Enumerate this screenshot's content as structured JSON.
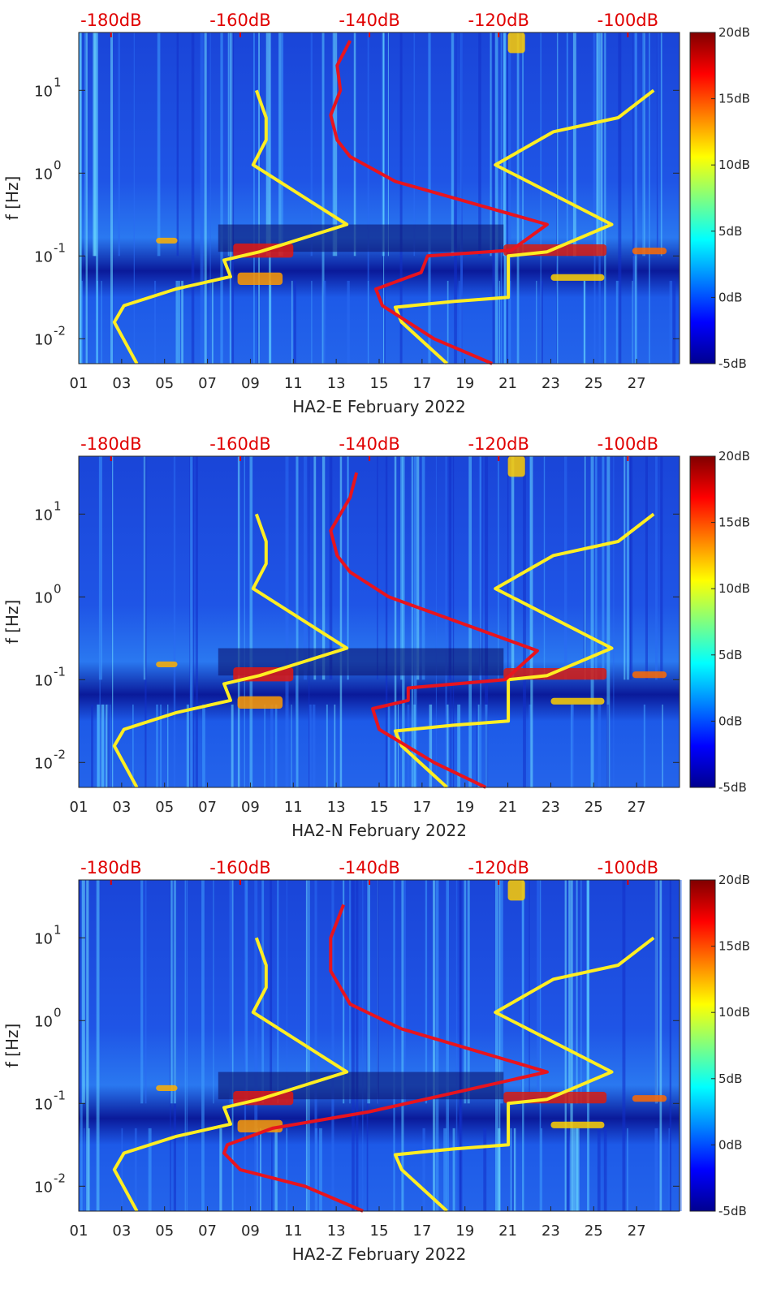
{
  "chart_data": [
    {
      "type": "heatmap",
      "title": "",
      "xlabel": "HA2-E February 2022",
      "ylabel": "f [Hz]",
      "x_ticks": [
        "01",
        "03",
        "05",
        "07",
        "09",
        "11",
        "13",
        "15",
        "17",
        "19",
        "21",
        "23",
        "25",
        "27"
      ],
      "x_range_days": [
        1,
        29
      ],
      "y_scale": "log",
      "y_range_hz": [
        0.005,
        50
      ],
      "y_ticks": [
        {
          "v": -2,
          "label": "10"
        },
        {
          "v": -1,
          "label": "10"
        },
        {
          "v": 0,
          "label": "10"
        },
        {
          "v": 1,
          "label": "10"
        }
      ],
      "y_tick_exponents": [
        "-2",
        "-1",
        "0",
        "1"
      ],
      "top_axis_labels": [
        "-180dB",
        "-160dB",
        "-140dB",
        "-120dB",
        "-100dB"
      ],
      "top_axis_values_db": [
        -180,
        -160,
        -140,
        -120,
        -100
      ],
      "colorbar_labels": [
        "20dB",
        "15dB",
        "10dB",
        "5dB",
        "0dB",
        "-5dB"
      ],
      "colorbar_range_db": [
        -5,
        20
      ],
      "series": [
        {
          "name": "yellow noise model (low)",
          "color": "#ffee22",
          "points_db_logf": [
            [
              -176,
              -2.3
            ],
            [
              -179.5,
              -1.8
            ],
            [
              -178,
              -1.6
            ],
            [
              -170,
              -1.4
            ],
            [
              -161.5,
              -1.25
            ],
            [
              -162.5,
              -1.05
            ],
            [
              -157,
              -0.95
            ],
            [
              -143.5,
              -0.62
            ],
            [
              -158,
              0.1
            ],
            [
              -156,
              0.4
            ],
            [
              -156,
              0.67
            ],
            [
              -157.5,
              1.0
            ]
          ]
        },
        {
          "name": "yellow noise model (high)",
          "color": "#ffee22",
          "points_db_logf": [
            [
              -128,
              -2.3
            ],
            [
              -135,
              -1.8
            ],
            [
              -136,
              -1.62
            ],
            [
              -127,
              -1.55
            ],
            [
              -118.5,
              -1.5
            ],
            [
              -118.5,
              -1.0
            ],
            [
              -112.5,
              -0.95
            ],
            [
              -102.5,
              -0.62
            ],
            [
              -120.5,
              0.1
            ],
            [
              -111.5,
              0.5
            ],
            [
              -101.5,
              0.67
            ],
            [
              -96,
              1.0
            ]
          ]
        },
        {
          "name": "red PSD",
          "color": "#e8141e",
          "points_db_logf": [
            [
              -121,
              -2.3
            ],
            [
              -130,
              -2.0
            ],
            [
              -138,
              -1.6
            ],
            [
              -139,
              -1.4
            ],
            [
              -132,
              -1.2
            ],
            [
              -131,
              -1.0
            ],
            [
              -118,
              -0.93
            ],
            [
              -112.5,
              -0.62
            ],
            [
              -136,
              -0.1
            ],
            [
              -143,
              0.2
            ],
            [
              -145,
              0.4
            ],
            [
              -146,
              0.7
            ],
            [
              -144.5,
              1.0
            ],
            [
              -145,
              1.3
            ],
            [
              -143,
              1.6
            ]
          ]
        }
      ]
    },
    {
      "type": "heatmap",
      "title": "",
      "xlabel": "HA2-N February 2022",
      "ylabel": "f [Hz]",
      "x_ticks": [
        "01",
        "03",
        "05",
        "07",
        "09",
        "11",
        "13",
        "15",
        "17",
        "19",
        "21",
        "23",
        "25",
        "27"
      ],
      "x_range_days": [
        1,
        29
      ],
      "y_scale": "log",
      "y_range_hz": [
        0.005,
        50
      ],
      "y_ticks": [
        {
          "v": -2,
          "label": "10"
        },
        {
          "v": -1,
          "label": "10"
        },
        {
          "v": 0,
          "label": "10"
        },
        {
          "v": 1,
          "label": "10"
        }
      ],
      "y_tick_exponents": [
        "-2",
        "-1",
        "0",
        "1"
      ],
      "top_axis_labels": [
        "-180dB",
        "-160dB",
        "-140dB",
        "-120dB",
        "-100dB"
      ],
      "top_axis_values_db": [
        -180,
        -160,
        -140,
        -120,
        -100
      ],
      "colorbar_labels": [
        "20dB",
        "15dB",
        "10dB",
        "5dB",
        "0dB",
        "-5dB"
      ],
      "colorbar_range_db": [
        -5,
        20
      ],
      "series": [
        {
          "name": "yellow noise model (low)",
          "color": "#ffee22",
          "points_db_logf": [
            [
              -176,
              -2.3
            ],
            [
              -179.5,
              -1.8
            ],
            [
              -178,
              -1.6
            ],
            [
              -170,
              -1.4
            ],
            [
              -161.5,
              -1.25
            ],
            [
              -162.5,
              -1.05
            ],
            [
              -157,
              -0.95
            ],
            [
              -143.5,
              -0.62
            ],
            [
              -158,
              0.1
            ],
            [
              -156,
              0.4
            ],
            [
              -156,
              0.67
            ],
            [
              -157.5,
              1.0
            ]
          ]
        },
        {
          "name": "yellow noise model (high)",
          "color": "#ffee22",
          "points_db_logf": [
            [
              -128,
              -2.3
            ],
            [
              -135,
              -1.8
            ],
            [
              -136,
              -1.62
            ],
            [
              -127,
              -1.55
            ],
            [
              -118.5,
              -1.5
            ],
            [
              -118.5,
              -1.0
            ],
            [
              -112.5,
              -0.95
            ],
            [
              -102.5,
              -0.62
            ],
            [
              -120.5,
              0.1
            ],
            [
              -111.5,
              0.5
            ],
            [
              -101.5,
              0.67
            ],
            [
              -96,
              1.0
            ]
          ]
        },
        {
          "name": "red PSD",
          "color": "#e8141e",
          "points_db_logf": [
            [
              -122,
              -2.3
            ],
            [
              -130,
              -2.0
            ],
            [
              -138.5,
              -1.6
            ],
            [
              -139.5,
              -1.35
            ],
            [
              -134,
              -1.25
            ],
            [
              -134,
              -1.1
            ],
            [
              -119,
              -1.0
            ],
            [
              -114,
              -0.65
            ],
            [
              -137,
              0.0
            ],
            [
              -143,
              0.3
            ],
            [
              -145,
              0.5
            ],
            [
              -146,
              0.8
            ],
            [
              -143,
              1.2
            ],
            [
              -142,
              1.5
            ]
          ]
        }
      ]
    },
    {
      "type": "heatmap",
      "title": "",
      "xlabel": "HA2-Z February 2022",
      "ylabel": "f [Hz]",
      "x_ticks": [
        "01",
        "03",
        "05",
        "07",
        "09",
        "11",
        "13",
        "15",
        "17",
        "19",
        "21",
        "23",
        "25",
        "27"
      ],
      "x_range_days": [
        1,
        29
      ],
      "y_scale": "log",
      "y_range_hz": [
        0.005,
        50
      ],
      "y_ticks": [
        {
          "v": -2,
          "label": "10"
        },
        {
          "v": -1,
          "label": "10"
        },
        {
          "v": 0,
          "label": "10"
        },
        {
          "v": 1,
          "label": "10"
        }
      ],
      "y_tick_exponents": [
        "-2",
        "-1",
        "0",
        "1"
      ],
      "top_axis_labels": [
        "-180dB",
        "-160dB",
        "-140dB",
        "-120dB",
        "-100dB"
      ],
      "top_axis_values_db": [
        -180,
        -160,
        -140,
        -120,
        -100
      ],
      "colorbar_labels": [
        "20dB",
        "15dB",
        "10dB",
        "5dB",
        "0dB",
        "-5dB"
      ],
      "colorbar_range_db": [
        -5,
        20
      ],
      "series": [
        {
          "name": "yellow noise model (low)",
          "color": "#ffee22",
          "points_db_logf": [
            [
              -176,
              -2.3
            ],
            [
              -179.5,
              -1.8
            ],
            [
              -178,
              -1.6
            ],
            [
              -170,
              -1.4
            ],
            [
              -161.5,
              -1.25
            ],
            [
              -162.5,
              -1.05
            ],
            [
              -157,
              -0.95
            ],
            [
              -143.5,
              -0.62
            ],
            [
              -158,
              0.1
            ],
            [
              -156,
              0.4
            ],
            [
              -156,
              0.67
            ],
            [
              -157.5,
              1.0
            ]
          ]
        },
        {
          "name": "yellow noise model (high)",
          "color": "#ffee22",
          "points_db_logf": [
            [
              -128,
              -2.3
            ],
            [
              -135,
              -1.8
            ],
            [
              -136,
              -1.62
            ],
            [
              -127,
              -1.55
            ],
            [
              -118.5,
              -1.5
            ],
            [
              -118.5,
              -1.0
            ],
            [
              -112.5,
              -0.95
            ],
            [
              -102.5,
              -0.62
            ],
            [
              -120.5,
              0.1
            ],
            [
              -111.5,
              0.5
            ],
            [
              -101.5,
              0.67
            ],
            [
              -96,
              1.0
            ]
          ]
        },
        {
          "name": "red PSD",
          "color": "#e8141e",
          "points_db_logf": [
            [
              -141,
              -2.3
            ],
            [
              -150,
              -2.0
            ],
            [
              -160,
              -1.8
            ],
            [
              -162.5,
              -1.6
            ],
            [
              -162,
              -1.5
            ],
            [
              -155,
              -1.3
            ],
            [
              -140,
              -1.1
            ],
            [
              -112.5,
              -0.62
            ],
            [
              -135,
              -0.1
            ],
            [
              -143,
              0.2
            ],
            [
              -146,
              0.6
            ],
            [
              -146,
              1.0
            ],
            [
              -144,
              1.4
            ]
          ]
        }
      ]
    }
  ]
}
